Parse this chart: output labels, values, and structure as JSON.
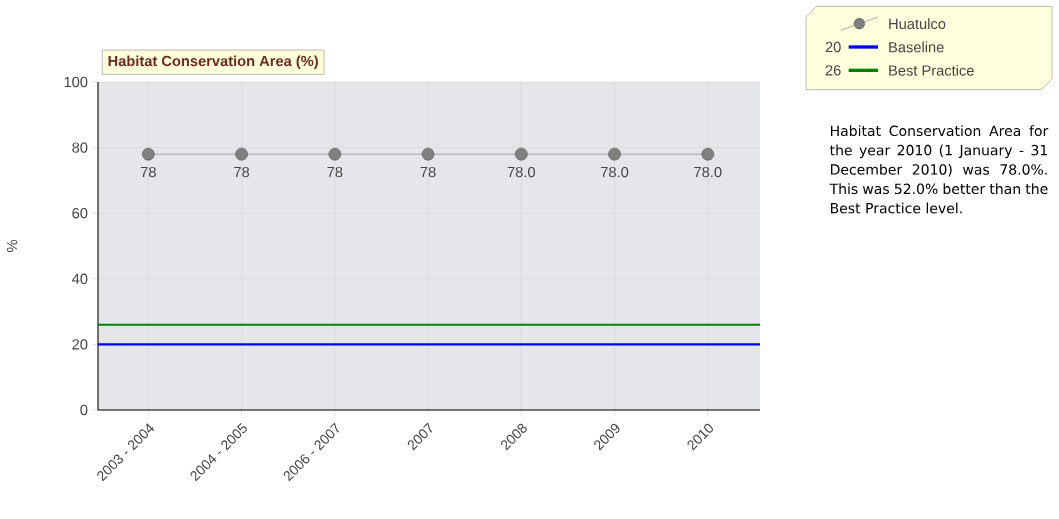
{
  "chart_data": {
    "type": "line",
    "title": "Habitat Conservation Area (%)",
    "ylabel": "%",
    "categories": [
      "2003 - 2004",
      "2004 - 2005",
      "2006 - 2007",
      "2007",
      "2008",
      "2009",
      "2010"
    ],
    "series": [
      {
        "name": "Huatulco",
        "color": "#808080",
        "values": [
          78,
          78,
          78,
          78,
          78,
          78,
          78
        ],
        "value_labels": [
          "78",
          "78",
          "78",
          "78",
          "78.0",
          "78.0",
          "78.0"
        ]
      }
    ],
    "ref_lines": [
      {
        "axis": "y",
        "value": 20,
        "label": "Baseline",
        "color": "#0000ff"
      },
      {
        "axis": "y",
        "value": 26,
        "label": "Best Practice",
        "color": "#008000"
      }
    ],
    "ylim": [
      0,
      100
    ],
    "yticks": [
      0,
      20,
      40,
      60,
      80,
      100
    ],
    "grid": true,
    "legend": "top right",
    "marker": "circle",
    "annotations": [
      "20",
      "26",
      "Habitat Conservation Area for the year 2010 (1 January - 31 December 2010) was 78.0%. This was 52.0% better than the Best Practice level."
    ]
  }
}
